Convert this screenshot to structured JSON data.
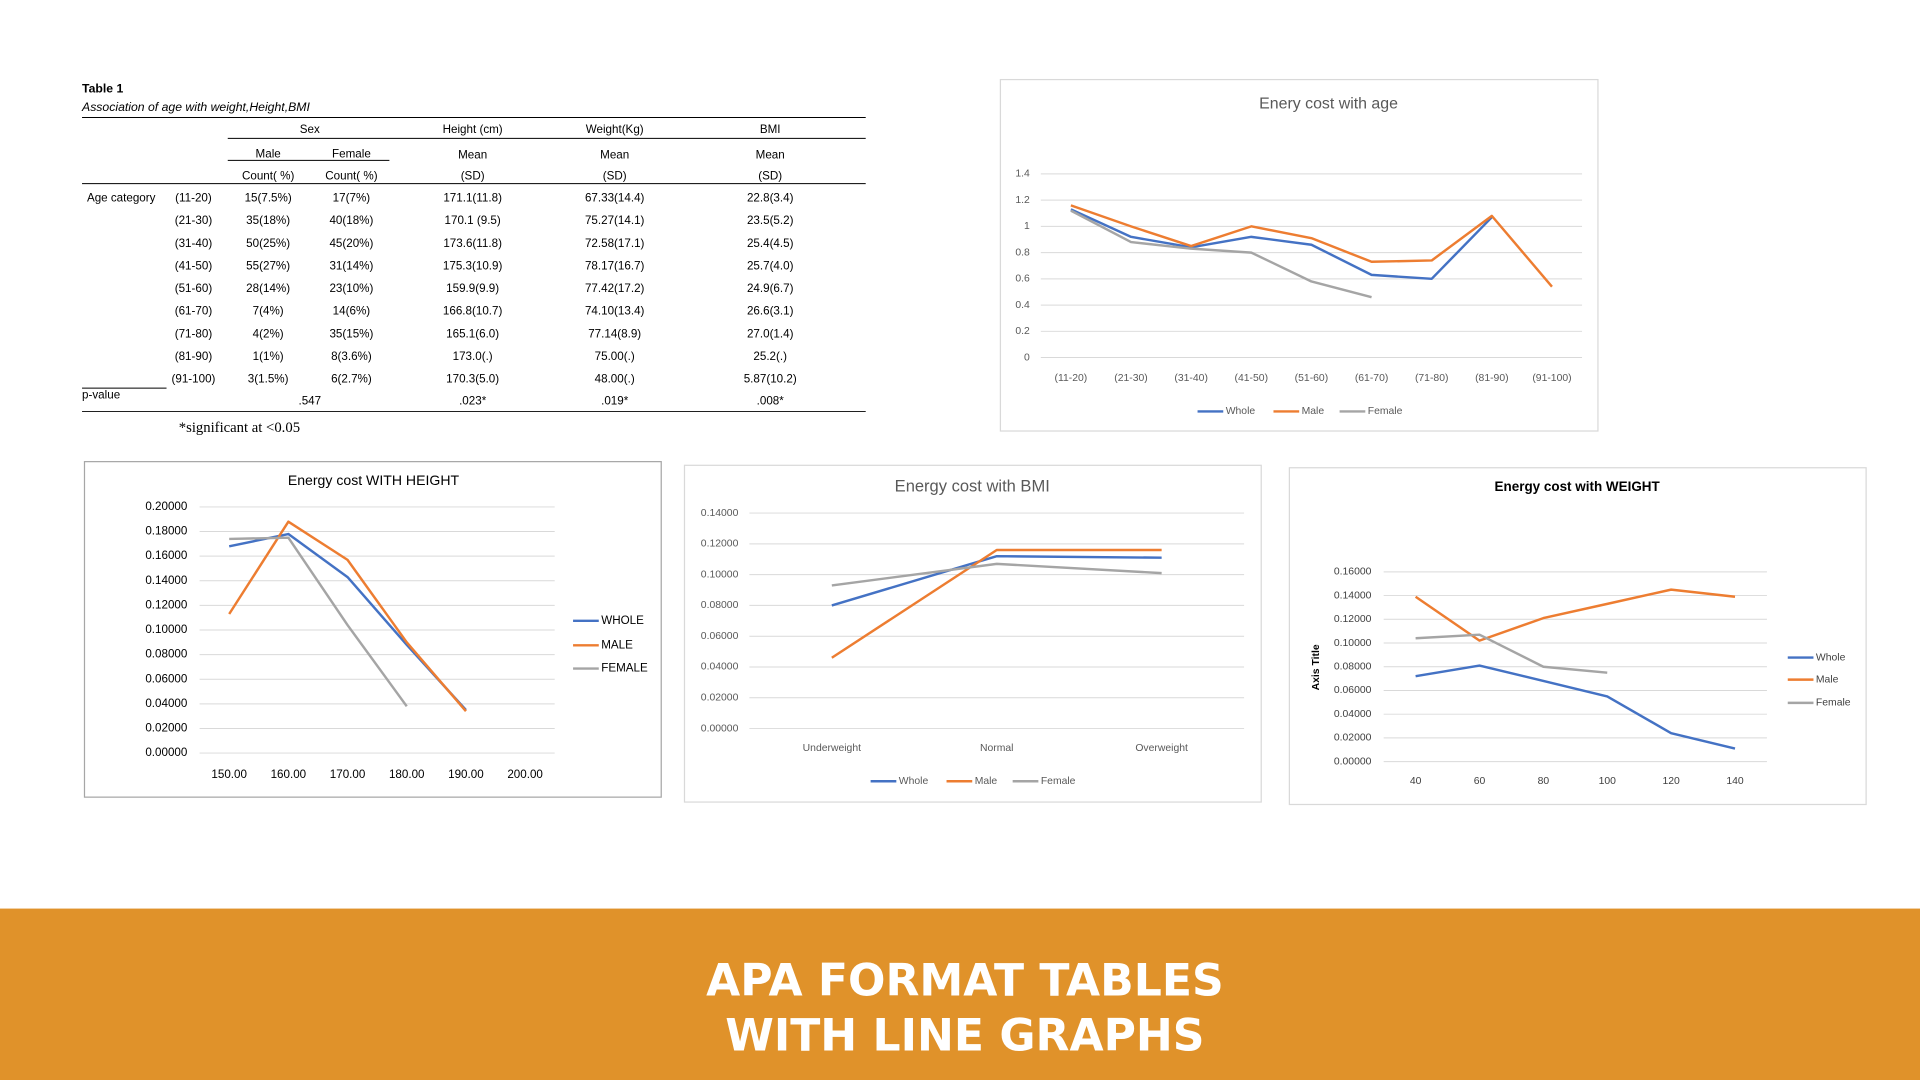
{
  "table": {
    "title": "Table 1",
    "caption": "Association of age with weight,Height,BMI",
    "header": {
      "group": "Sex",
      "sub": [
        "Male",
        "Female"
      ],
      "columns": [
        "Height (cm)",
        "Weight(Kg)",
        "BMI"
      ],
      "mean": [
        "Mean",
        "Mean",
        "Mean"
      ],
      "counts": [
        "Count( %)",
        "Count( %)"
      ],
      "sd": [
        "(SD)",
        "(SD)",
        "(SD)"
      ]
    },
    "row_group": "Age category",
    "rows": [
      [
        "(11-20)",
        "15(7.5%)",
        "17(7%)",
        "171.1(11.8)",
        "67.33(14.4)",
        "22.8(3.4)"
      ],
      [
        "(21-30)",
        "35(18%)",
        "40(18%)",
        "170.1 (9.5)",
        "75.27(14.1)",
        "23.5(5.2)"
      ],
      [
        "(31-40)",
        "50(25%)",
        "45(20%)",
        "173.6(11.8)",
        "72.58(17.1)",
        "25.4(4.5)"
      ],
      [
        "(41-50)",
        "55(27%)",
        "31(14%)",
        "175.3(10.9)",
        "78.17(16.7)",
        "25.7(4.0)"
      ],
      [
        "(51-60)",
        "28(14%)",
        "23(10%)",
        "159.9(9.9)",
        "77.42(17.2)",
        "24.9(6.7)"
      ],
      [
        "(61-70)",
        "7(4%)",
        "14(6%)",
        "166.8(10.7)",
        "74.10(13.4)",
        "26.6(3.1)"
      ],
      [
        "(71-80)",
        "4(2%)",
        "35(15%)",
        "165.1(6.0)",
        "77.14(8.9)",
        "27.0(1.4)"
      ],
      [
        "(81-90)",
        "1(1%)",
        "8(3.6%)",
        "173.0(.)",
        "75.00(.)",
        "25.2(.)"
      ],
      [
        "(91-100)",
        "3(1.5%)",
        "6(2.7%)",
        "170.3(5.0)",
        "48.00(.)",
        "5.87(10.2)"
      ]
    ],
    "pvalue_label": "p-value",
    "pvalues": [
      ".547",
      ".023*",
      ".019*",
      ".008*"
    ],
    "note": "*significant at <0.05"
  },
  "chart_data": [
    {
      "type": "line",
      "title": "Enery cost with age",
      "categories": [
        "(11-20)",
        "(21-30)",
        "(31-40)",
        "(41-50)",
        "(51-60)",
        "(61-70)",
        "(71-80)",
        "(81-90)",
        "(91-100)"
      ],
      "series": [
        {
          "name": "Whole",
          "color": "#4472c4",
          "values": [
            1.13,
            0.92,
            0.84,
            0.92,
            0.86,
            0.63,
            0.6,
            1.07,
            null
          ]
        },
        {
          "name": "Male",
          "color": "#ed7d31",
          "values": [
            1.16,
            1.0,
            0.85,
            1.0,
            0.91,
            0.73,
            0.74,
            1.08,
            0.54
          ]
        },
        {
          "name": "Female",
          "color": "#a5a5a5",
          "values": [
            1.12,
            0.88,
            0.83,
            0.8,
            0.58,
            0.46,
            null,
            null,
            null
          ]
        }
      ],
      "ylim": [
        0,
        1.4
      ],
      "yticks": [
        0,
        0.2,
        0.4,
        0.6,
        0.8,
        1,
        1.2,
        1.4
      ],
      "grid": true,
      "legend": "bottom"
    },
    {
      "type": "line",
      "title": "Energy cost WITH HEIGHT",
      "x": [
        150,
        160,
        170,
        180,
        190
      ],
      "series": [
        {
          "name": "WHOLE",
          "color": "#4472c4",
          "values": [
            0.168,
            0.178,
            0.143,
            0.088,
            0.035
          ]
        },
        {
          "name": "MALE",
          "color": "#ed7d31",
          "values": [
            0.113,
            0.188,
            0.157,
            0.09,
            0.034
          ]
        },
        {
          "name": "FEMALE",
          "color": "#a5a5a5",
          "values": [
            0.174,
            0.175,
            0.104,
            0.038,
            null
          ]
        }
      ],
      "xlim": [
        145,
        205
      ],
      "xticks": [
        {
          "value": 150,
          "label": "150.00"
        },
        {
          "value": 160,
          "label": "160.00"
        },
        {
          "value": 170,
          "label": "170.00"
        },
        {
          "value": 180,
          "label": "180.00"
        },
        {
          "value": 190,
          "label": "190.00"
        },
        {
          "value": 200,
          "label": "200.00"
        }
      ],
      "ylim": [
        0,
        0.2
      ],
      "yticks": [
        {
          "value": 0,
          "label": "0.00000"
        },
        {
          "value": 0.02,
          "label": "0.02000"
        },
        {
          "value": 0.04,
          "label": "0.04000"
        },
        {
          "value": 0.06,
          "label": "0.06000"
        },
        {
          "value": 0.08,
          "label": "0.08000"
        },
        {
          "value": 0.1,
          "label": "0.10000"
        },
        {
          "value": 0.12,
          "label": "0.12000"
        },
        {
          "value": 0.14,
          "label": "0.14000"
        },
        {
          "value": 0.16,
          "label": "0.16000"
        },
        {
          "value": 0.18,
          "label": "0.18000"
        },
        {
          "value": 0.2,
          "label": "0.20000"
        }
      ],
      "grid": true,
      "legend": "right"
    },
    {
      "type": "line",
      "title": "Energy cost with BMI",
      "categories": [
        "Underweight",
        "Normal",
        "Overweight"
      ],
      "series": [
        {
          "name": "Whole",
          "color": "#4472c4",
          "values": [
            0.08,
            0.112,
            0.111
          ]
        },
        {
          "name": "Male",
          "color": "#ed7d31",
          "values": [
            0.046,
            0.116,
            0.116
          ]
        },
        {
          "name": "Female",
          "color": "#a5a5a5",
          "values": [
            0.093,
            0.107,
            0.101
          ]
        }
      ],
      "ylim": [
        0,
        0.14
      ],
      "yticks": [
        {
          "value": 0,
          "label": "0.00000"
        },
        {
          "value": 0.02,
          "label": "0.02000"
        },
        {
          "value": 0.04,
          "label": "0.04000"
        },
        {
          "value": 0.06,
          "label": "0.06000"
        },
        {
          "value": 0.08,
          "label": "0.08000"
        },
        {
          "value": 0.1,
          "label": "0.10000"
        },
        {
          "value": 0.12,
          "label": "0.12000"
        },
        {
          "value": 0.14,
          "label": "0.14000"
        }
      ],
      "grid": true,
      "legend": "bottom"
    },
    {
      "type": "line",
      "title": "Energy cost with WEIGHT",
      "y_label": "Axis Title",
      "x": [
        40,
        60,
        80,
        100,
        120,
        140
      ],
      "series": [
        {
          "name": "Whole",
          "color": "#4472c4",
          "values": [
            0.072,
            0.081,
            0.068,
            0.055,
            0.024,
            0.011
          ]
        },
        {
          "name": "Male",
          "color": "#ed7d31",
          "values": [
            0.139,
            0.102,
            0.121,
            0.133,
            0.145,
            0.139
          ]
        },
        {
          "name": "Female",
          "color": "#a5a5a5",
          "values": [
            0.104,
            0.107,
            0.08,
            0.075,
            null,
            null
          ]
        }
      ],
      "xlim": [
        30,
        150
      ],
      "xticks": [
        40,
        60,
        80,
        100,
        120,
        140
      ],
      "ylim": [
        0,
        0.16
      ],
      "yticks": [
        {
          "value": 0,
          "label": "0.00000"
        },
        {
          "value": 0.02,
          "label": "0.02000"
        },
        {
          "value": 0.04,
          "label": "0.04000"
        },
        {
          "value": 0.06,
          "label": "0.06000"
        },
        {
          "value": 0.08,
          "label": "0.08000"
        },
        {
          "value": 0.1,
          "label": "0.10000"
        },
        {
          "value": 0.12,
          "label": "0.12000"
        },
        {
          "value": 0.14,
          "label": "0.14000"
        },
        {
          "value": 0.16,
          "label": "0.16000"
        }
      ],
      "grid": true,
      "legend": "right"
    }
  ],
  "banner": {
    "lines": [
      "APA FORMAT TABLES",
      "WITH LINE GRAPHS"
    ]
  }
}
